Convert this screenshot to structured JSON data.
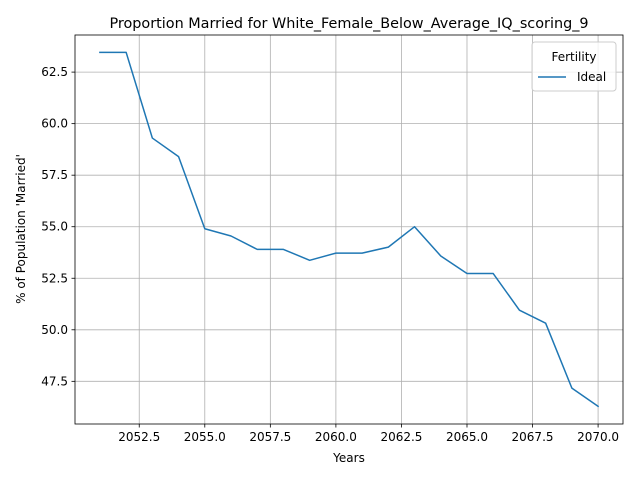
{
  "chart_data": {
    "type": "line",
    "title": "Proportion Married for White_Female_Below_Average_IQ_scoring_9",
    "xlabel": "Years",
    "ylabel": "% of Population 'Married'",
    "xlim": [
      2050.05,
      2070.95
    ],
    "ylim": [
      45.43,
      64.3
    ],
    "x_ticks": [
      2052.5,
      2055.0,
      2057.5,
      2060.0,
      2062.5,
      2065.0,
      2067.5,
      2070.0
    ],
    "x_tick_labels": [
      "2052.5",
      "2055.0",
      "2057.5",
      "2060.0",
      "2062.5",
      "2065.0",
      "2067.5",
      "2070.0"
    ],
    "y_ticks": [
      47.5,
      50.0,
      52.5,
      55.0,
      57.5,
      60.0,
      62.5
    ],
    "y_tick_labels": [
      "47.5",
      "50.0",
      "52.5",
      "55.0",
      "57.5",
      "60.0",
      "62.5"
    ],
    "grid": true,
    "legend": {
      "title": "Fertility",
      "placement": "top-right"
    },
    "series": [
      {
        "name": "Ideal",
        "color": "#1f77b4",
        "x": [
          2051,
          2052,
          2053,
          2054,
          2055,
          2056,
          2057,
          2058,
          2059,
          2060,
          2061,
          2062,
          2063,
          2064,
          2065,
          2066,
          2067,
          2068,
          2069,
          2070
        ],
        "y": [
          63.46,
          63.46,
          59.3,
          58.4,
          54.9,
          54.55,
          53.9,
          53.9,
          53.37,
          53.72,
          53.72,
          54.01,
          55.0,
          53.58,
          52.73,
          52.73,
          50.95,
          50.32,
          47.17,
          46.29
        ]
      }
    ]
  }
}
